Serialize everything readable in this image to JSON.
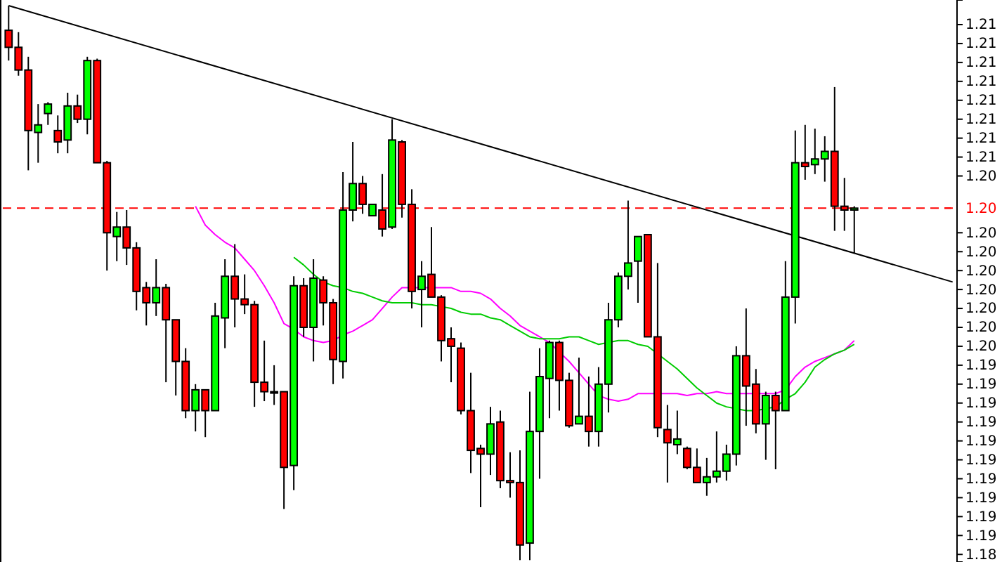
{
  "chart_data": {
    "type": "candlestick",
    "categories": [
      null,
      null,
      null,
      null,
      null,
      null,
      null,
      null,
      null,
      null,
      null,
      null,
      null,
      null,
      null,
      null,
      null,
      null,
      null,
      null,
      null,
      null,
      null,
      null,
      null,
      null,
      null,
      null,
      null,
      null,
      null,
      null,
      null,
      null,
      null,
      null,
      null,
      null,
      null,
      null,
      null,
      null,
      null,
      null,
      null,
      null,
      null,
      null,
      null,
      null,
      null,
      null,
      null,
      null,
      null,
      null,
      null,
      null,
      null,
      null,
      null,
      null,
      null,
      null,
      null,
      null,
      null,
      null,
      null,
      null,
      null,
      null,
      null,
      null,
      null,
      null,
      null,
      null,
      null,
      null,
      null,
      null,
      null,
      null,
      null,
      null,
      null,
      null,
      null,
      null,
      null,
      null,
      null,
      null,
      null,
      null,
      null
    ],
    "ohlc": [
      [
        1.2122,
        1.2135,
        1.2106,
        1.2113
      ],
      [
        1.2113,
        1.2121,
        1.2098,
        1.2101
      ],
      [
        1.2101,
        1.2108,
        1.2048,
        1.2069
      ],
      [
        1.2068,
        1.2083,
        1.2052,
        1.2072
      ],
      [
        1.2078,
        1.2084,
        1.2072,
        1.2083
      ],
      [
        1.2069,
        1.2077,
        1.2057,
        1.2063
      ],
      [
        1.2064,
        1.2089,
        1.2057,
        1.2082
      ],
      [
        1.2082,
        1.2088,
        1.2073,
        1.2075
      ],
      [
        1.2075,
        1.2108,
        1.2067,
        1.2106
      ],
      [
        1.2106,
        1.2107,
        1.2052,
        1.2052
      ],
      [
        1.2052,
        1.2053,
        1.1995,
        1.2015
      ],
      [
        1.2013,
        1.2026,
        1.2,
        1.2018
      ],
      [
        1.2018,
        1.2027,
        1.1998,
        1.2007
      ],
      [
        1.2007,
        1.201,
        1.1974,
        1.1984
      ],
      [
        1.1986,
        1.1989,
        1.1966,
        1.1978
      ],
      [
        1.1978,
        1.2001,
        1.1971,
        1.1986
      ],
      [
        1.1986,
        1.1988,
        1.1936,
        1.1969
      ],
      [
        1.1969,
        1.1969,
        1.1929,
        1.1947
      ],
      [
        1.1947,
        1.1954,
        1.1917,
        1.1921
      ],
      [
        1.1921,
        1.1935,
        1.191,
        1.1932
      ],
      [
        1.1932,
        1.1932,
        1.1907,
        1.1921
      ],
      [
        1.1921,
        1.1978,
        1.1921,
        1.1971
      ],
      [
        1.197,
        1.2001,
        1.1954,
        1.1992
      ],
      [
        1.1992,
        1.2009,
        1.1965,
        1.198
      ],
      [
        1.198,
        1.1993,
        1.1972,
        1.1977
      ],
      [
        1.1977,
        1.1979,
        1.1923,
        1.1936
      ],
      [
        1.1936,
        1.1958,
        1.1926,
        1.1931
      ],
      [
        1.1931,
        1.1945,
        1.1924,
        1.1931
      ],
      [
        1.1931,
        1.1931,
        1.1869,
        1.1891
      ],
      [
        1.1892,
        1.1992,
        1.1879,
        1.1987
      ],
      [
        1.1987,
        1.1991,
        1.196,
        1.1965
      ],
      [
        1.1965,
        1.2001,
        1.1947,
        1.1991
      ],
      [
        1.199,
        1.1992,
        1.1966,
        1.1978
      ],
      [
        1.1978,
        1.198,
        1.1935,
        1.1948
      ],
      [
        1.1947,
        1.2047,
        1.1938,
        1.2027
      ],
      [
        1.2027,
        1.2063,
        1.2021,
        1.2041
      ],
      [
        1.2041,
        1.2045,
        1.2025,
        1.203
      ],
      [
        1.2024,
        1.203,
        1.2024,
        1.203
      ],
      [
        1.2027,
        1.2046,
        1.2013,
        1.2017
      ],
      [
        1.2018,
        1.2075,
        1.2017,
        1.2064
      ],
      [
        1.2063,
        1.2064,
        1.2023,
        1.203
      ],
      [
        1.203,
        1.2038,
        1.1975,
        1.1984
      ],
      [
        1.1985,
        1.2,
        1.1965,
        1.1992
      ],
      [
        1.1993,
        1.2018,
        1.1981,
        1.1981
      ],
      [
        1.1981,
        1.1982,
        1.1947,
        1.1958
      ],
      [
        1.1959,
        1.1965,
        1.1936,
        1.1955
      ],
      [
        1.1954,
        1.1957,
        1.1919,
        1.1921
      ],
      [
        1.1921,
        1.1941,
        1.1888,
        1.19
      ],
      [
        1.1901,
        1.1903,
        1.187,
        1.1898
      ],
      [
        1.1898,
        1.1923,
        1.1887,
        1.1914
      ],
      [
        1.1915,
        1.1921,
        1.188,
        1.1884
      ],
      [
        1.1884,
        1.1899,
        1.1875,
        1.1883
      ],
      [
        1.1883,
        1.19,
        1.1842,
        1.185
      ],
      [
        1.1851,
        1.1931,
        1.1842,
        1.191
      ],
      [
        1.191,
        1.1954,
        1.1885,
        1.1939
      ],
      [
        1.1938,
        1.1958,
        1.1917,
        1.1957
      ],
      [
        1.1957,
        1.1958,
        1.1921,
        1.1937
      ],
      [
        1.1937,
        1.1941,
        1.1912,
        1.1913
      ],
      [
        1.1914,
        1.1949,
        1.1914,
        1.1918
      ],
      [
        1.1918,
        1.1939,
        1.1902,
        1.191
      ],
      [
        1.191,
        1.1944,
        1.1902,
        1.1935
      ],
      [
        1.1935,
        1.1978,
        1.192,
        1.1969
      ],
      [
        1.1969,
        1.1994,
        1.1965,
        1.1992
      ],
      [
        1.1992,
        1.2032,
        1.1985,
        1.1999
      ],
      [
        1.2,
        1.2013,
        1.1978,
        1.2013
      ],
      [
        1.2014,
        1.2014,
        1.196,
        1.196
      ],
      [
        1.196,
        1.1999,
        1.1907,
        1.1912
      ],
      [
        1.1911,
        1.1924,
        1.1883,
        1.1904
      ],
      [
        1.1903,
        1.1921,
        1.1898,
        1.1906
      ],
      [
        1.1901,
        1.1902,
        1.189,
        1.1891
      ],
      [
        1.1891,
        1.1901,
        1.1883,
        1.1883
      ],
      [
        1.1883,
        1.1896,
        1.1876,
        1.1886
      ],
      [
        1.1886,
        1.191,
        1.1883,
        1.1889
      ],
      [
        1.1889,
        1.1903,
        1.1884,
        1.1898
      ],
      [
        1.1898,
        1.1955,
        1.1892,
        1.195
      ],
      [
        1.195,
        1.1975,
        1.1913,
        1.1934
      ],
      [
        1.1935,
        1.1943,
        1.1909,
        1.1914
      ],
      [
        1.1914,
        1.1931,
        1.1895,
        1.1929
      ],
      [
        1.1929,
        1.1931,
        1.189,
        1.1921
      ],
      [
        1.1921,
        1.2,
        1.1921,
        1.1981
      ],
      [
        1.1981,
        1.2069,
        1.1967,
        1.2052
      ],
      [
        1.2052,
        1.2072,
        1.2043,
        1.205
      ],
      [
        1.2051,
        1.207,
        1.2046,
        1.2054
      ],
      [
        1.2054,
        1.2066,
        1.2042,
        1.2058
      ],
      [
        1.2058,
        1.2092,
        1.2016,
        1.2029
      ],
      [
        1.2029,
        1.2044,
        1.2016,
        1.2027
      ],
      [
        1.2027,
        1.2029,
        1.2004,
        1.2028
      ],
      null,
      null,
      null,
      null,
      null,
      null,
      null,
      null,
      null,
      null
    ],
    "colors": [
      "#ff0000",
      "#ff0000",
      "#ff0000",
      "#00ff00",
      "#00ff00",
      "#ff0000",
      "#00ff00",
      "#ff0000",
      "#00ff00",
      "#ff0000",
      "#ff0000",
      "#00ff00",
      "#ff0000",
      "#ff0000",
      "#ff0000",
      "#00ff00",
      "#ff0000",
      "#ff0000",
      "#ff0000",
      "#00ff00",
      "#ff0000",
      "#00ff00",
      "#00ff00",
      "#ff0000",
      "#ff0000",
      "#ff0000",
      "#ff0000",
      "#ff0000",
      "#ff0000",
      "#00ff00",
      "#ff0000",
      "#00ff00",
      "#ff0000",
      "#ff0000",
      "#00ff00",
      "#00ff00",
      "#ff0000",
      "#00ff00",
      "#ff0000",
      "#00ff00",
      "#ff0000",
      "#ff0000",
      "#00ff00",
      "#ff0000",
      "#ff0000",
      "#ff0000",
      "#ff0000",
      "#ff0000",
      "#ff0000",
      "#00ff00",
      "#ff0000",
      "#ff0000",
      "#ff0000",
      "#00ff00",
      "#00ff00",
      "#00ff00",
      "#ff0000",
      "#ff0000",
      "#00ff00",
      "#ff0000",
      "#00ff00",
      "#00ff00",
      "#00ff00",
      "#00ff00",
      "#00ff00",
      "#ff0000",
      "#ff0000",
      "#ff0000",
      "#00ff00",
      "#ff0000",
      "#ff0000",
      "#00ff00",
      "#00ff00",
      "#00ff00",
      "#00ff00",
      "#ff0000",
      "#ff0000",
      "#00ff00",
      "#ff0000",
      "#00ff00",
      "#00ff00",
      "#ff0000",
      "#00ff00",
      "#00ff00",
      "#ff0000",
      "#ff0000",
      "#00ff00",
      null,
      null,
      null,
      null,
      null,
      null,
      null,
      null,
      null,
      null
    ],
    "series": [
      {
        "type": "line",
        "color": "#000000",
        "values": [
          1.2135,
          null,
          null,
          null,
          null,
          null,
          null,
          null,
          null,
          null,
          null,
          null,
          null,
          null,
          null,
          null,
          null,
          null,
          null,
          null,
          null,
          null,
          null,
          null,
          null,
          null,
          null,
          null,
          null,
          null,
          null,
          null,
          null,
          null,
          null,
          null,
          null,
          null,
          null,
          null,
          null,
          null,
          null,
          null,
          null,
          null,
          null,
          null,
          null,
          null,
          null,
          null,
          null,
          null,
          null,
          null,
          null,
          null,
          null,
          null,
          null,
          null,
          null,
          null,
          null,
          null,
          null,
          null,
          null,
          null,
          null,
          null,
          null,
          null,
          null,
          null,
          null,
          null,
          null,
          null,
          null,
          null,
          null,
          null,
          null,
          null,
          null,
          null,
          null,
          null,
          null,
          null,
          null,
          null,
          null,
          null,
          1.1989
        ]
      },
      {
        "type": "line",
        "color": "#ff00ff",
        "values": [
          null,
          null,
          null,
          null,
          null,
          null,
          null,
          null,
          null,
          null,
          null,
          null,
          null,
          null,
          null,
          null,
          null,
          null,
          null,
          1.2029,
          1.2019,
          1.2014,
          1.201,
          1.2007,
          1.2001,
          1.1995,
          1.1987,
          1.1978,
          1.1967,
          1.1964,
          1.196,
          1.1958,
          1.1957,
          1.1958,
          1.1961,
          1.1963,
          1.1966,
          1.1969,
          1.1975,
          1.1981,
          1.1986,
          1.1986,
          1.1986,
          1.1986,
          1.1986,
          1.1986,
          1.1984,
          1.1984,
          1.1983,
          1.198,
          1.1975,
          1.1971,
          1.1966,
          1.1963,
          1.196,
          1.1957,
          1.1952,
          1.1947,
          1.1941,
          1.1935,
          1.1929,
          1.1927,
          1.1926,
          1.1927,
          1.193,
          1.193,
          1.193,
          1.193,
          1.193,
          1.1929,
          1.193,
          1.193,
          1.1931,
          1.193,
          1.193,
          1.193,
          1.193,
          1.193,
          1.193,
          1.1932,
          1.1939,
          1.1944,
          1.1947,
          1.1949,
          1.1951,
          1.1953,
          1.1958,
          null,
          null,
          null,
          null,
          null,
          null,
          null,
          null,
          null,
          null
        ]
      },
      {
        "type": "line",
        "color": "#00cc00",
        "values": [
          null,
          null,
          null,
          null,
          null,
          null,
          null,
          null,
          null,
          null,
          null,
          null,
          null,
          null,
          null,
          null,
          null,
          null,
          null,
          null,
          null,
          null,
          null,
          null,
          null,
          null,
          null,
          null,
          null,
          1.2002,
          1.1998,
          1.1993,
          1.1989,
          1.1987,
          1.1986,
          1.1984,
          1.1983,
          1.1981,
          1.1979,
          1.1978,
          1.1978,
          1.1978,
          1.1977,
          1.1977,
          1.1976,
          1.1975,
          1.1973,
          1.1972,
          1.1972,
          1.197,
          1.1969,
          1.1966,
          1.1963,
          1.196,
          1.1959,
          1.1959,
          1.1959,
          1.196,
          1.196,
          1.1958,
          1.1956,
          1.1957,
          1.1958,
          1.1958,
          1.1956,
          1.1955,
          1.1951,
          1.1947,
          1.1943,
          1.1938,
          1.1933,
          1.1929,
          1.1925,
          1.1923,
          1.1922,
          1.1921,
          1.1921,
          1.1922,
          1.1923,
          1.1927,
          1.193,
          1.1936,
          1.1944,
          1.1948,
          1.1951,
          1.1953,
          1.1956,
          null,
          null,
          null,
          null,
          null,
          null,
          null,
          null,
          null,
          null
        ]
      }
    ],
    "ylim": [
      1.1841,
      1.2138
    ],
    "yticks": [
      {
        "value": 1.1845,
        "label": "1.18"
      },
      {
        "value": 1.1855,
        "label": "1.19"
      },
      {
        "value": 1.1865,
        "label": "1.19"
      },
      {
        "value": 1.1875,
        "label": "1.19"
      },
      {
        "value": 1.1885,
        "label": "1.19"
      },
      {
        "value": 1.1895,
        "label": "1.19"
      },
      {
        "value": 1.1905,
        "label": "1.19"
      },
      {
        "value": 1.1915,
        "label": "1.19"
      },
      {
        "value": 1.1925,
        "label": "1.19"
      },
      {
        "value": 1.1935,
        "label": "1.19"
      },
      {
        "value": 1.1945,
        "label": "1.19"
      },
      {
        "value": 1.1955,
        "label": "1.20"
      },
      {
        "value": 1.1965,
        "label": "1.20"
      },
      {
        "value": 1.1975,
        "label": "1.20"
      },
      {
        "value": 1.1985,
        "label": "1.20"
      },
      {
        "value": 1.1995,
        "label": "1.20"
      },
      {
        "value": 1.2005,
        "label": "1.20"
      },
      {
        "value": 1.2015,
        "label": "1.20"
      },
      {
        "value": 1.2045,
        "label": "1.20"
      },
      {
        "value": 1.2055,
        "label": "1.21"
      },
      {
        "value": 1.2065,
        "label": "1.21"
      },
      {
        "value": 1.2075,
        "label": "1.21"
      },
      {
        "value": 1.2085,
        "label": "1.21"
      },
      {
        "value": 1.2095,
        "label": "1.21"
      },
      {
        "value": 1.2105,
        "label": "1.21"
      },
      {
        "value": 1.2115,
        "label": "1.21"
      },
      {
        "value": 1.2125,
        "label": "1.21"
      }
    ],
    "ref_lines": [
      {
        "axis": "y",
        "value": 1.2028,
        "label": "1.20",
        "color": "#ff0000",
        "line_style": "dashed"
      }
    ],
    "tick_labels": "y"
  }
}
